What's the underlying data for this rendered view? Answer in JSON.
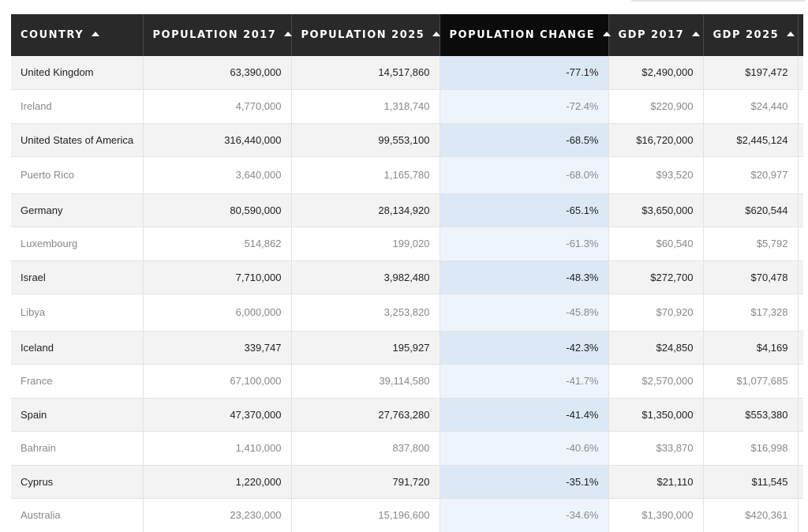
{
  "table": {
    "columns": [
      {
        "label": "COUNTRY",
        "sorted": true
      },
      {
        "label": "POPULATION 2017",
        "sorted": true
      },
      {
        "label": "POPULATION 2025",
        "sorted": true
      },
      {
        "label": "POPULATION CHANGE",
        "sorted": true,
        "active": true
      },
      {
        "label": "GDP 2017",
        "sorted": true
      },
      {
        "label": "GDP 2025",
        "sorted": true
      }
    ],
    "rows": [
      [
        "United Kingdom",
        "63,390,000",
        "14,517,860",
        "-77.1%",
        "$2,490,000",
        "$197,472"
      ],
      [
        "Ireland",
        "4,770,000",
        "1,318,740",
        "-72.4%",
        "$220,900",
        "$24,440"
      ],
      [
        "United States of America",
        "316,440,000",
        "99,553,100",
        "-68.5%",
        "$16,720,000",
        "$2,445,124"
      ],
      [
        "Puerto Rico",
        "3,640,000",
        "1,165,780",
        "-68.0%",
        "$93,520",
        "$20,977"
      ],
      [
        "Germany",
        "80,590,000",
        "28,134,920",
        "-65.1%",
        "$3,650,000",
        "$620,544"
      ],
      [
        "Luxembourg",
        "514,862",
        "199,020",
        "-61.3%",
        "$60,540",
        "$5,792"
      ],
      [
        "Israel",
        "7,710,000",
        "3,982,480",
        "-48.3%",
        "$272,700",
        "$70,478"
      ],
      [
        "Libya",
        "6,000,000",
        "3,253,820",
        "-45.8%",
        "$70,920",
        "$17,328"
      ],
      [
        "Iceland",
        "339,747",
        "195,927",
        "-42.3%",
        "$24,850",
        "$4,169"
      ],
      [
        "France",
        "67,100,000",
        "39,114,580",
        "-41.7%",
        "$2,570,000",
        "$1,077,685"
      ],
      [
        "Spain",
        "47,370,000",
        "27,763,280",
        "-41.4%",
        "$1,350,000",
        "$553,380"
      ],
      [
        "Bahrain",
        "1,410,000",
        "837,800",
        "-40.6%",
        "$33,870",
        "$16,998"
      ],
      [
        "Cyprus",
        "1,220,000",
        "791,720",
        "-35.1%",
        "$21,110",
        "$11,545"
      ],
      [
        "Australia",
        "23,230,000",
        "15,196,600",
        "-34.6%",
        "$1,390,000",
        "$420,361"
      ]
    ]
  },
  "icons": {
    "sort": "sort-ascending-icon"
  },
  "colors": {
    "header_bg": "#292929",
    "header_active_bg": "#0b0b0b",
    "row_odd": "#f3f3f3",
    "row_even": "#ffffff",
    "change_highlight_odd": "#dbe8f5",
    "change_highlight_even": "#edf4fb"
  }
}
